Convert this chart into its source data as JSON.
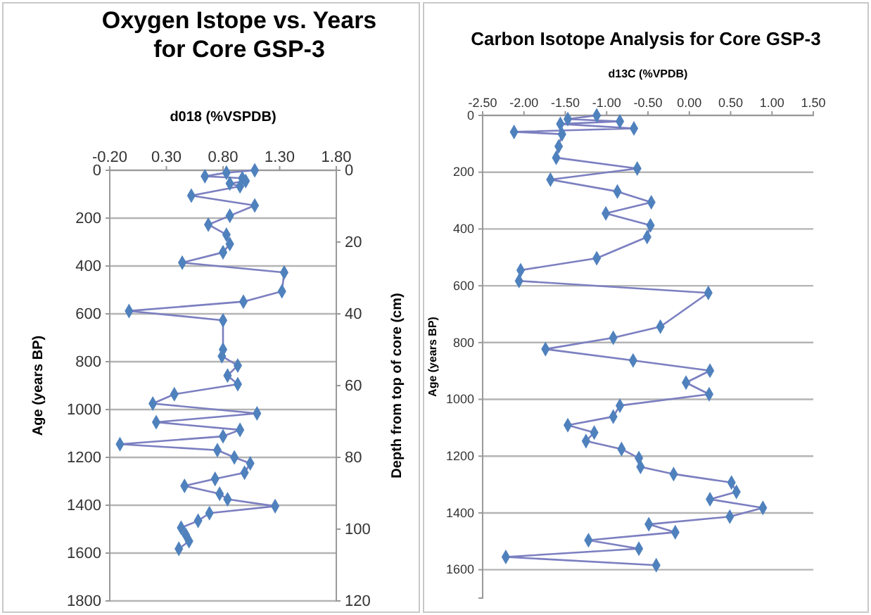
{
  "chart_data": [
    {
      "type": "line",
      "title": "Oxygen Istope vs. Years for Core GSP-3",
      "xlabel": "d018 (%VSPDB)",
      "ylabel": "Age (years BP)",
      "y2label": "Depth from top of core (cm)",
      "xlim": [
        -0.2,
        1.8
      ],
      "xticks": [
        {
          "value": -0.2,
          "label": "-0.20"
        },
        {
          "value": 0.3,
          "label": "0.30"
        },
        {
          "value": 0.8,
          "label": "0.80"
        },
        {
          "value": 1.3,
          "label": "1.30"
        },
        {
          "value": 1.8,
          "label": "1.80"
        }
      ],
      "ylim": [
        1800,
        0
      ],
      "yticks": [
        0,
        200,
        400,
        600,
        800,
        1000,
        1200,
        1400,
        1600,
        1800
      ],
      "y2lim": [
        120,
        0
      ],
      "y2ticks": [
        0,
        20,
        40,
        60,
        80,
        100,
        120
      ],
      "grid": "y",
      "marker": "diamond",
      "series": [
        {
          "color": "#4f81bd",
          "x": [
            1.08,
            0.83,
            0.64,
            0.97,
            1.0,
            0.86,
            0.95,
            0.52,
            1.08,
            0.86,
            0.67,
            0.83,
            0.86,
            0.8,
            0.44,
            1.34,
            1.32,
            0.98,
            -0.03,
            0.8,
            0.8,
            0.79,
            0.93,
            0.84,
            0.93,
            0.37,
            0.18,
            1.1,
            0.21,
            0.95,
            0.8,
            -0.11,
            0.75,
            0.9,
            1.04,
            0.99,
            0.73,
            0.46,
            0.77,
            0.84,
            1.26,
            0.68,
            0.58,
            0.43,
            0.47,
            0.5,
            0.41
          ],
          "values": [
            0,
            10,
            25,
            33,
            45,
            55,
            67,
            106,
            147,
            190,
            227,
            269,
            308,
            343,
            386,
            427,
            506,
            549,
            588,
            627,
            749,
            777,
            816,
            858,
            894,
            936,
            975,
            1016,
            1053,
            1085,
            1112,
            1145,
            1170,
            1200,
            1225,
            1264,
            1290,
            1319,
            1352,
            1375,
            1404,
            1433,
            1465,
            1494,
            1523,
            1550,
            1582
          ]
        }
      ]
    },
    {
      "type": "line",
      "title": "Carbon Isotope Analysis for Core GSP-3",
      "xlabel": "d13C (%VPDB)",
      "ylabel": "Age (years BP)",
      "xlim": [
        -2.5,
        1.5
      ],
      "xticks": [
        {
          "value": -2.5,
          "label": "-2.50"
        },
        {
          "value": -2,
          "label": "-2.00"
        },
        {
          "value": -1.5,
          "label": "-1.50"
        },
        {
          "value": -1,
          "label": "-1.00"
        },
        {
          "value": -0.5,
          "label": "-0.50"
        },
        {
          "value": 0,
          "label": "0.00"
        },
        {
          "value": 0.5,
          "label": "0.50"
        },
        {
          "value": 1,
          "label": "1.00"
        },
        {
          "value": 1.5,
          "label": "1.50"
        }
      ],
      "ylim": [
        1700,
        0
      ],
      "yticks": [
        0,
        200,
        400,
        600,
        800,
        1000,
        1200,
        1400,
        1600
      ],
      "grid": "y",
      "marker": "diamond",
      "series": [
        {
          "color": "#4f81bd",
          "x": [
            -1.12,
            -1.47,
            -0.84,
            -1.56,
            -0.67,
            -2.12,
            -1.54,
            -1.58,
            -1.61,
            -0.63,
            -1.68,
            -0.87,
            -0.46,
            -1.01,
            -0.47,
            -0.51,
            -1.12,
            -2.04,
            -2.06,
            0.23,
            -0.35,
            -0.92,
            -1.74,
            -0.68,
            0.25,
            -0.04,
            0.24,
            -0.84,
            -0.92,
            -1.47,
            -1.15,
            -1.25,
            -0.82,
            -0.61,
            -0.59,
            -0.19,
            0.51,
            0.57,
            0.25,
            0.89,
            0.49,
            -0.49,
            -0.17,
            -1.22,
            -0.61,
            -2.22,
            -0.4
          ],
          "values": [
            0,
            13,
            21,
            30,
            46,
            58,
            66,
            109,
            149,
            187,
            226,
            268,
            306,
            345,
            387,
            428,
            503,
            545,
            583,
            625,
            744,
            783,
            823,
            863,
            899,
            941,
            982,
            1022,
            1061,
            1091,
            1117,
            1147,
            1175,
            1207,
            1238,
            1263,
            1293,
            1326,
            1352,
            1382,
            1413,
            1440,
            1468,
            1496,
            1526,
            1555,
            1584
          ]
        }
      ]
    }
  ]
}
